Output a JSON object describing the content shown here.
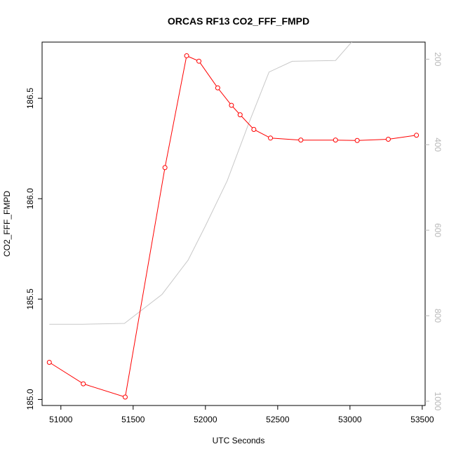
{
  "chart_data": {
    "type": "line",
    "title": "ORCAS RF13 CO2_FFF_FMPD",
    "xlabel": "UTC Seconds",
    "ylabel": "CO2_FFF_FMPD",
    "xlim": [
      50870,
      53520
    ],
    "ylim": [
      184.97,
      186.78
    ],
    "y2lim": [
      1010,
      160
    ],
    "x_ticks": [
      51000,
      51500,
      52000,
      52500,
      53000,
      53500
    ],
    "x_tick_labels": [
      "51000",
      "51500",
      "52000",
      "52500",
      "53000",
      "53500"
    ],
    "y_ticks": [
      185.0,
      185.5,
      186.0,
      186.5
    ],
    "y_tick_labels": [
      "185.0",
      "185.5",
      "186.0",
      "186.5"
    ],
    "y2_ticks": [
      200,
      400,
      600,
      800,
      1000
    ],
    "y2_tick_labels": [
      "200",
      "400",
      "600",
      "800",
      "1000"
    ],
    "grid": false,
    "series": [
      {
        "axis": "left",
        "color": "#ff0000",
        "marker": "open-circle",
        "x": [
          50920,
          51155,
          51445,
          51720,
          51870,
          51955,
          52085,
          52180,
          52240,
          52335,
          52450,
          52660,
          52900,
          53050,
          53265,
          53460
        ],
        "y": [
          185.185,
          185.078,
          185.012,
          186.155,
          186.712,
          186.685,
          186.552,
          186.465,
          186.418,
          186.345,
          186.302,
          186.292,
          186.292,
          186.29,
          186.296,
          186.316
        ]
      },
      {
        "axis": "right",
        "color": "#c8c8c8",
        "marker": "none",
        "x": [
          50920,
          51150,
          51440,
          51700,
          51880,
          52000,
          52150,
          52300,
          52440,
          52600,
          52900,
          53050
        ],
        "y": [
          820,
          820,
          818,
          750,
          670,
          590,
          485,
          350,
          230,
          205,
          203,
          145
        ]
      }
    ]
  }
}
